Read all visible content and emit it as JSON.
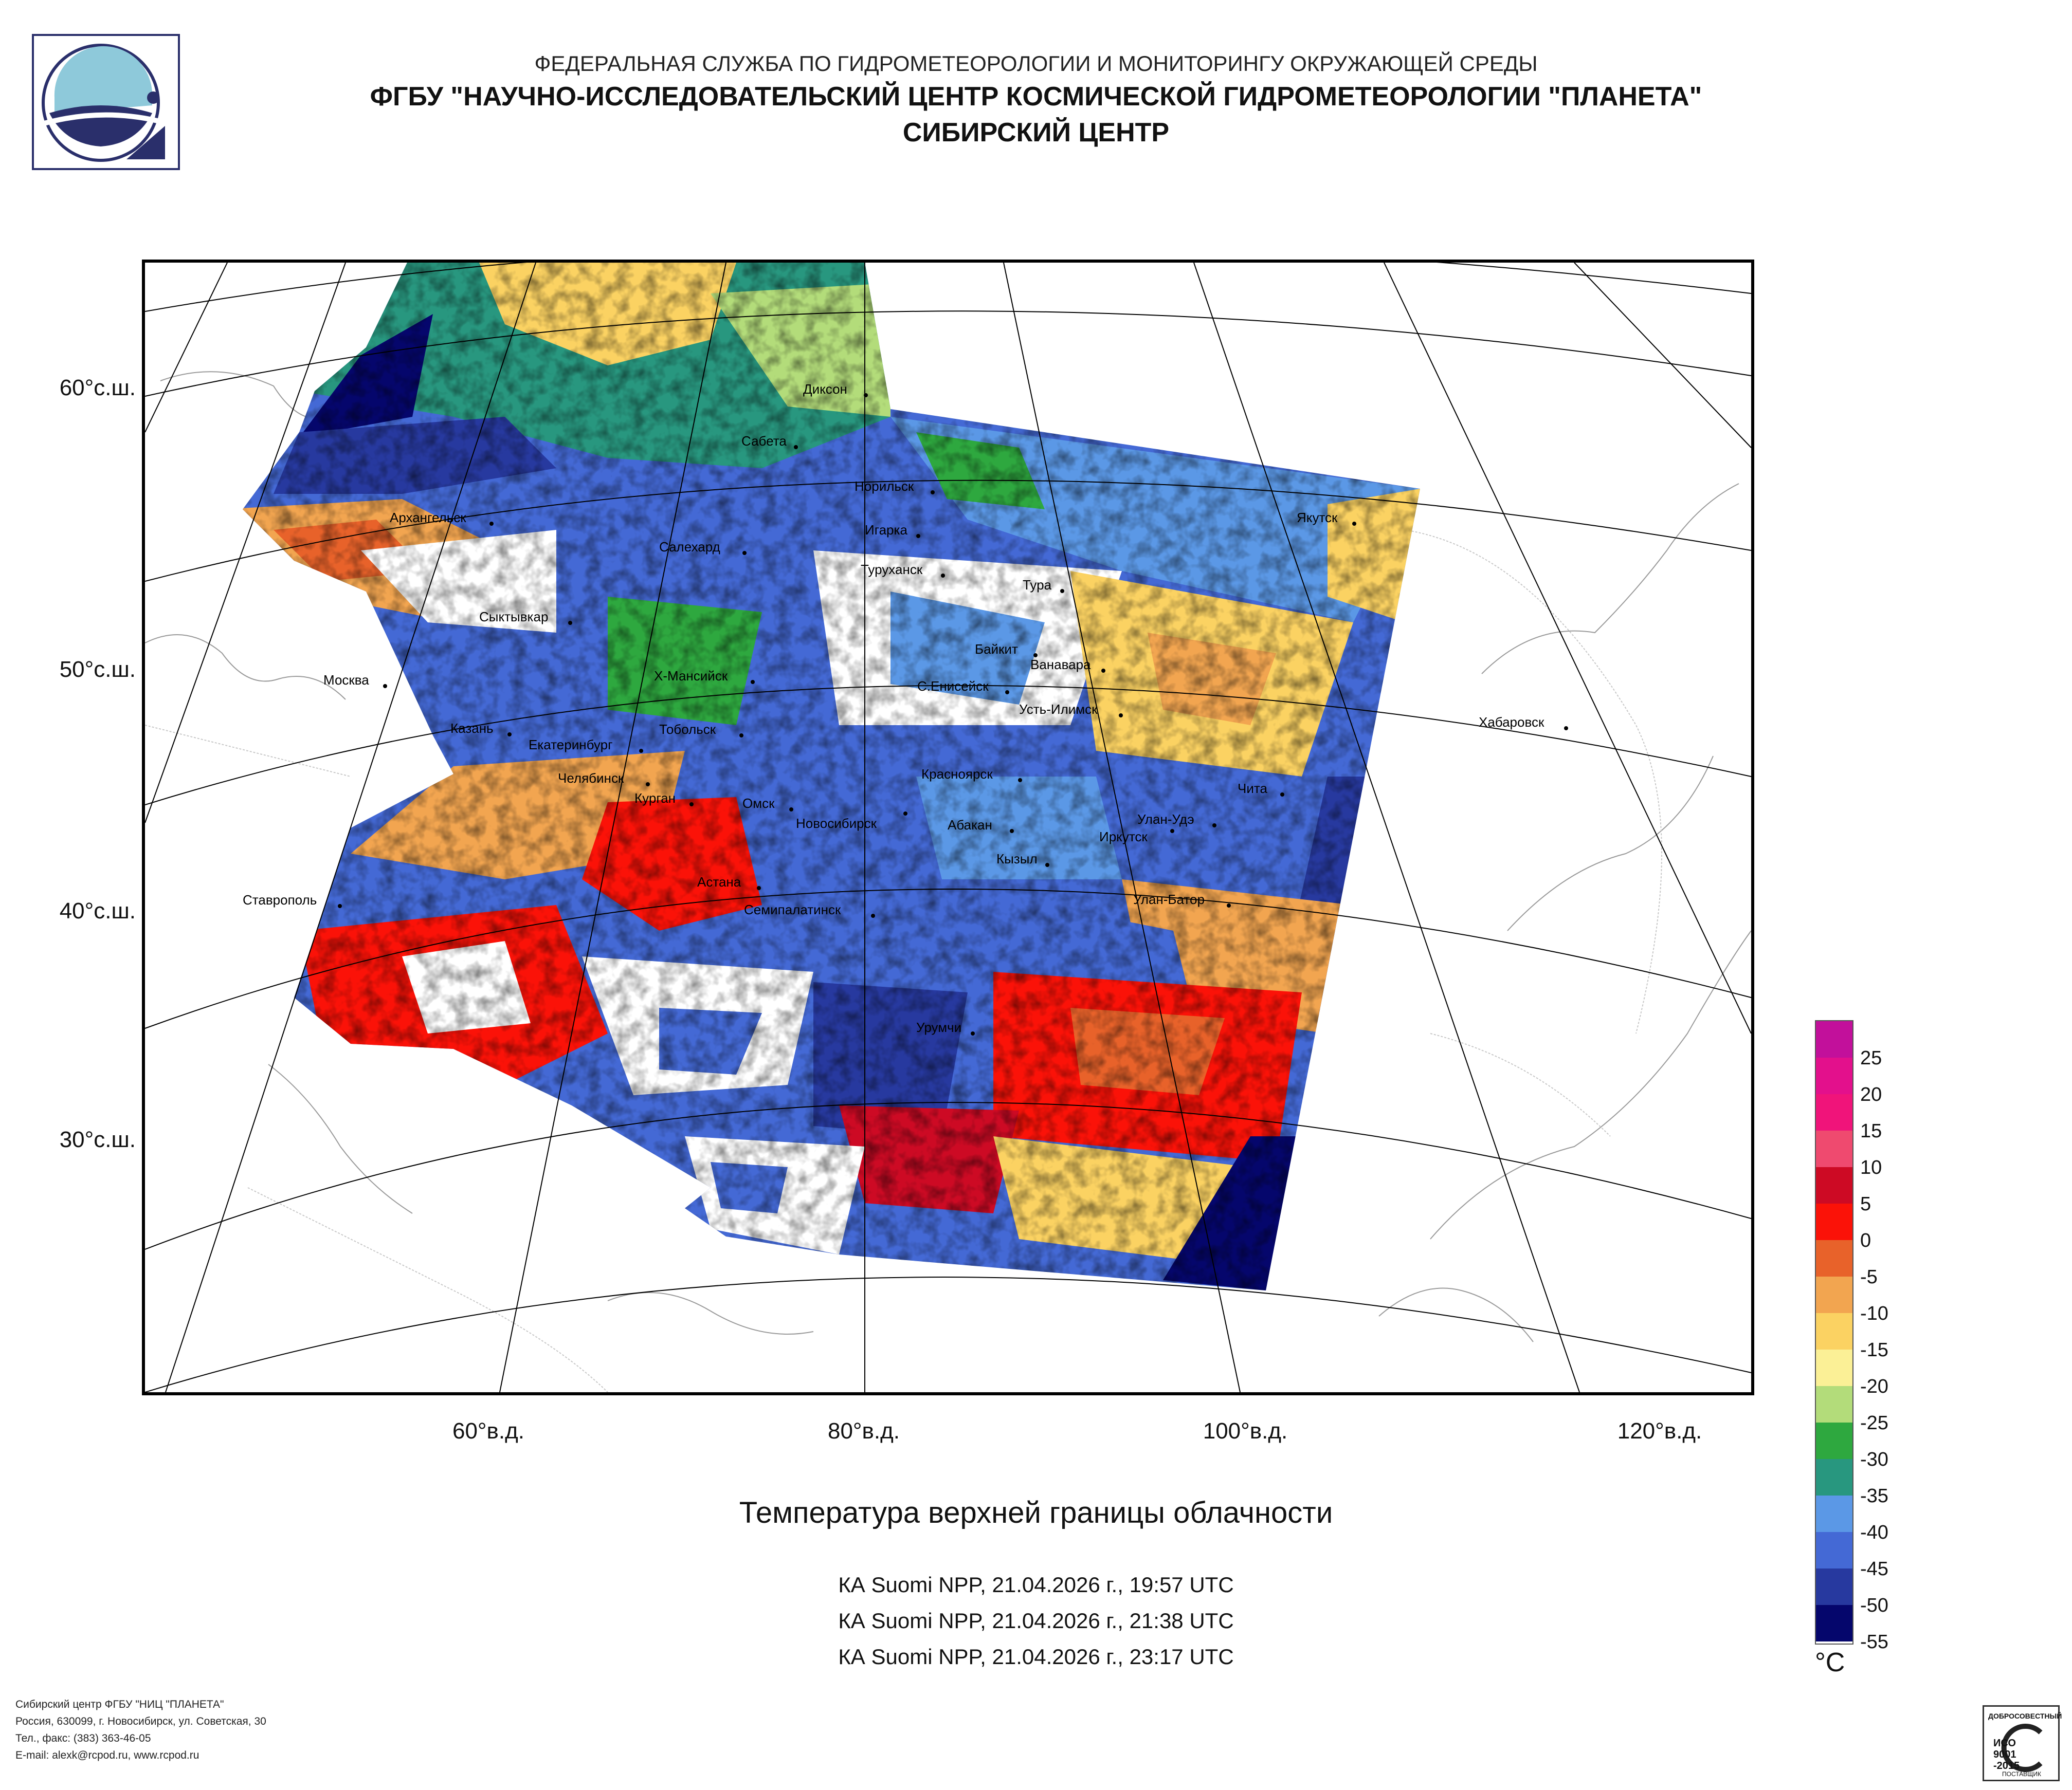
{
  "header": {
    "org": "ФЕДЕРАЛЬНАЯ СЛУЖБА ПО ГИДРОМЕТЕОРОЛОГИИ И МОНИТОРИНГУ ОКРУЖАЮЩЕЙ СРЕДЫ",
    "institute": "ФГБУ \"НАУЧНО-ИССЛЕДОВАТЕЛЬСКИЙ ЦЕНТР КОСМИЧЕСКОЙ ГИДРОМЕТЕОРОЛОГИИ \"ПЛАНЕТА\"",
    "center": "СИБИРСКИЙ ЦЕНТР"
  },
  "map": {
    "lat_labels": [
      "60°с.ш.",
      "50°с.ш.",
      "40°с.ш.",
      "30°с.ш."
    ],
    "lon_labels": [
      "60°в.д.",
      "80°в.д.",
      "100°в.д.",
      "120°в.д."
    ],
    "cities": [
      {
        "name": "Диксон"
      },
      {
        "name": "Сабета"
      },
      {
        "name": "Норильск"
      },
      {
        "name": "Архангельск"
      },
      {
        "name": "Игарка"
      },
      {
        "name": "Салехард"
      },
      {
        "name": "Якутск"
      },
      {
        "name": "Туруханск"
      },
      {
        "name": "Тура"
      },
      {
        "name": "Сыктывкар"
      },
      {
        "name": "Байкит"
      },
      {
        "name": "Ванавара"
      },
      {
        "name": "Х-Мансийск"
      },
      {
        "name": "С.Енисейск"
      },
      {
        "name": "Москва"
      },
      {
        "name": "Усть-Илимск"
      },
      {
        "name": "Хабаровск"
      },
      {
        "name": "Казань"
      },
      {
        "name": "Екатеринбург"
      },
      {
        "name": "Тобольск"
      },
      {
        "name": "Красноярск"
      },
      {
        "name": "Челябинск"
      },
      {
        "name": "Чита"
      },
      {
        "name": "Курган"
      },
      {
        "name": "Омск"
      },
      {
        "name": "Новосибирск"
      },
      {
        "name": "Абакан"
      },
      {
        "name": "Улан-Удэ"
      },
      {
        "name": "Иркутск"
      },
      {
        "name": "Кызыл"
      },
      {
        "name": "Астана"
      },
      {
        "name": "Ставрополь"
      },
      {
        "name": "Семипалатинск"
      },
      {
        "name": "Улан-Батор"
      },
      {
        "name": "Урумчи"
      }
    ]
  },
  "legend": {
    "unit": "°C",
    "labels": [
      "25",
      "20",
      "15",
      "10",
      "5",
      "0",
      "-5",
      "-10",
      "-15",
      "-20",
      "-25",
      "-30",
      "-35",
      "-40",
      "-45",
      "-50",
      "-55"
    ],
    "colors": [
      "#c2109b",
      "#e3108c",
      "#f0147a",
      "#ef4a6f",
      "#cd0a24",
      "#fb1208",
      "#e8622a",
      "#f2a550",
      "#fbd262",
      "#fbf096",
      "#b3dc7a",
      "#2ea83f",
      "#28977f",
      "#5b98e6",
      "#4469d5",
      "#27399f",
      "#05066c"
    ]
  },
  "product": {
    "title": "Температура верхней границы облачности",
    "passes": [
      "КА Suomi NPP, 21.04.2026 г., 19:57 UTC",
      "КА Suomi NPP, 21.04.2026 г., 21:38 UTC",
      "КА Suomi NPP, 21.04.2026 г., 23:17 UTC"
    ]
  },
  "footer": {
    "lines": [
      "Сибирский центр ФГБУ \"НИЦ \"ПЛАНЕТА\"",
      "Россия, 630099, г. Новосибирск, ул. Советская, 30",
      "Тел., факс: (383) 363-46-05",
      "E-mail: alexk@rcpod.ru, www.rcpod.ru"
    ]
  },
  "cert": {
    "top": "ДОБРОСОВЕСТНЫЙ",
    "mark": "ИСО 9001 -2015",
    "bottom": "ПОСТАВЩИК"
  }
}
